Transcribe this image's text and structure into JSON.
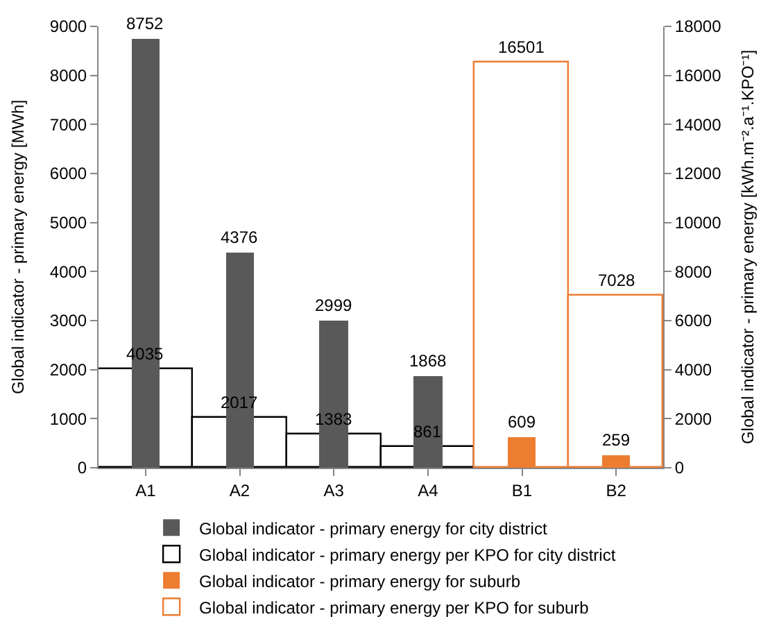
{
  "chart_data": {
    "type": "bar",
    "categories": [
      "A1",
      "A2",
      "A3",
      "A4",
      "B1",
      "B2"
    ],
    "ylabel": "Global indicator - primary energy [MWh]",
    "y2label": "Global indicator - primary energy [kWh.m⁻².a⁻¹.KPO⁻¹]",
    "ylim": [
      0,
      9000
    ],
    "yticks": [
      0,
      1000,
      2000,
      3000,
      4000,
      5000,
      6000,
      7000,
      8000,
      9000
    ],
    "y2lim": [
      0,
      18000
    ],
    "y2ticks": [
      0,
      2000,
      4000,
      6000,
      8000,
      10000,
      12000,
      14000,
      16000,
      18000
    ],
    "data_labels": true,
    "legend": "bottom",
    "series": [
      {
        "name": "Global indicator - primary energy per KPO for city district",
        "color": "#000000",
        "axis": "y2",
        "values": [
          4035,
          2017,
          1383,
          861,
          null,
          null
        ]
      },
      {
        "name": "Global indicator - primary energy per KPO for suburb",
        "color": "#ed7d31",
        "axis": "y2",
        "values": [
          null,
          null,
          null,
          null,
          16501,
          7028
        ]
      },
      {
        "name": "Global indicator - primary energy for city district",
        "color": "#595959",
        "values": [
          8752,
          4376,
          2999,
          1868,
          null,
          null
        ]
      },
      {
        "name": "Global indicator - primary energy for suburb",
        "color": "#ed7d31",
        "values": [
          null,
          null,
          null,
          null,
          609,
          259
        ]
      }
    ]
  }
}
